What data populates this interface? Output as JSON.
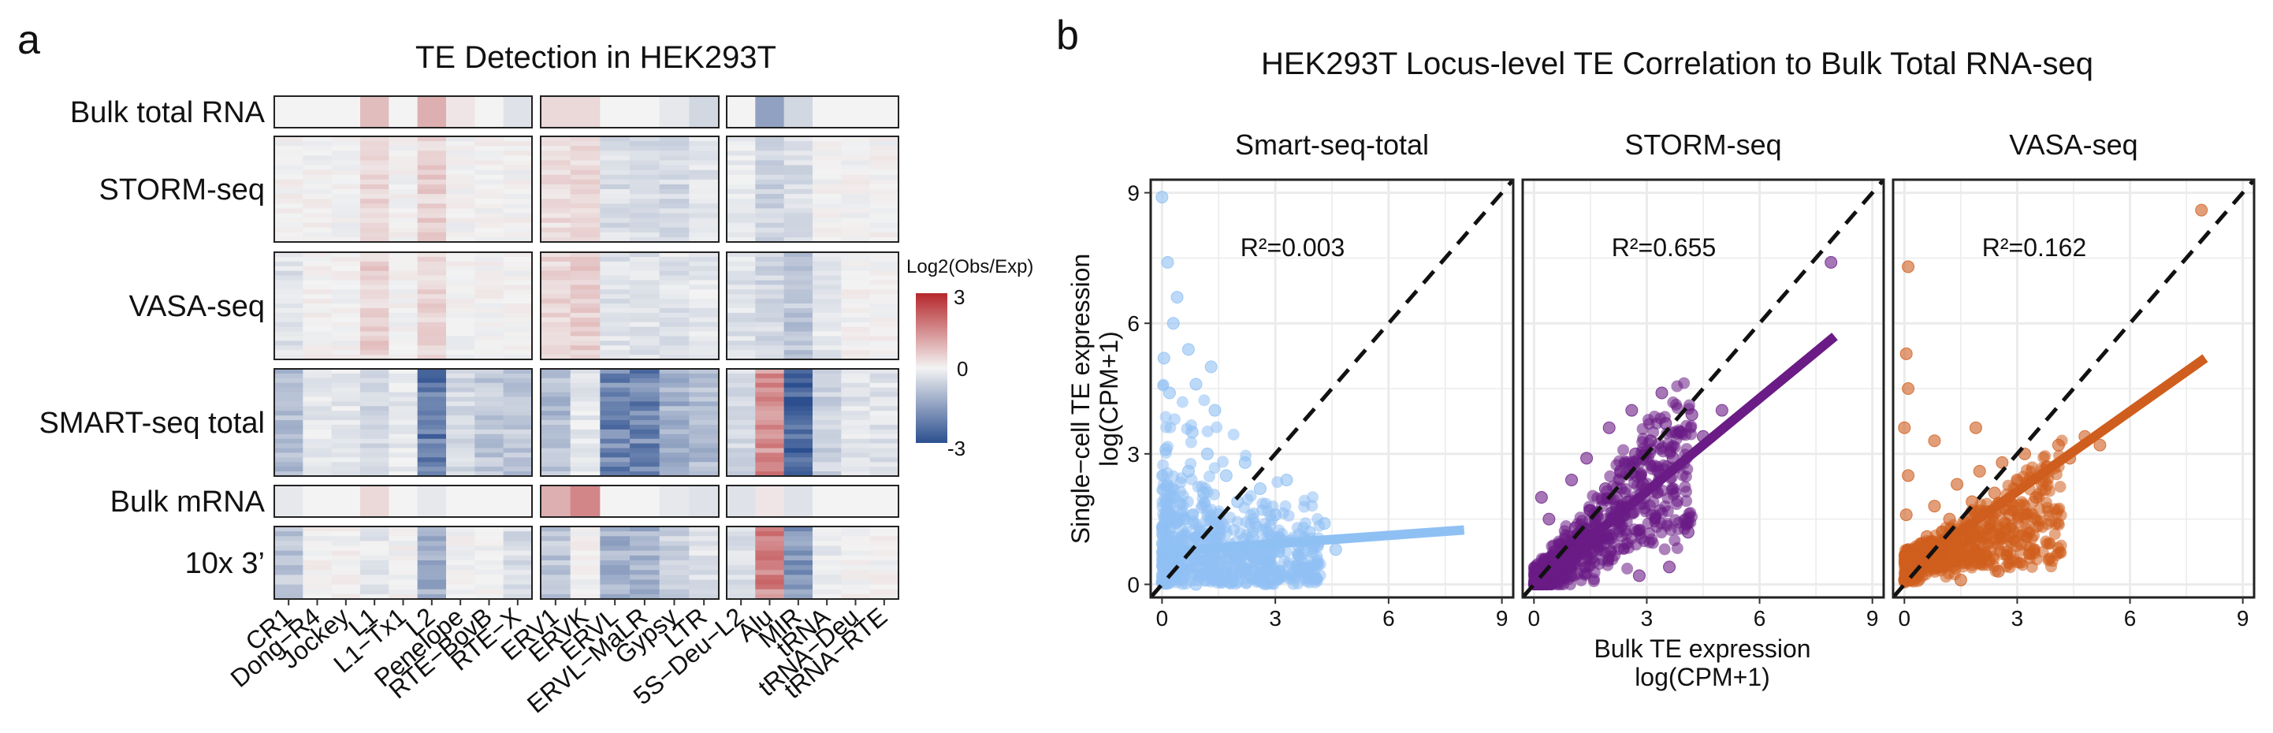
{
  "panel_a": {
    "letter": "a",
    "title": "TE Detection in HEK293T",
    "legend": {
      "title": "Log2(Obs/Exp)",
      "max": "3",
      "mid": "0",
      "min": "-3",
      "colors": {
        "low": "#2c4f8f",
        "mid": "#f3f3f3",
        "high": "#b5272b"
      }
    }
  },
  "panel_b": {
    "letter": "b",
    "title": "HEK293T Locus-level TE Correlation to Bulk Total RNA-seq",
    "y_title_line1": "Single−cell TE expression",
    "y_title_line2": "log(CPM+1)",
    "x_title_line1": "Bulk TE expression",
    "x_title_line2": "log(CPM+1)"
  },
  "chart_data": [
    {
      "type": "heatmap",
      "title": "TE Detection in HEK293T",
      "rows": [
        "Bulk total RNA",
        "STORM-seq",
        "VASA-seq",
        "SMART-seq total",
        "Bulk mRNA",
        "10x 3’"
      ],
      "column_groups": [
        [
          "CR1",
          "Dong−R4",
          "Jockey",
          "L1",
          "L1−Tx1",
          "L2",
          "Penelope",
          "RTE−BovB",
          "RTE−X"
        ],
        [
          "ERV1",
          "ERVK",
          "ERVL",
          "ERVL−MaLR",
          "Gypsy",
          "LTR"
        ],
        [
          "5S−Deu−L2",
          "Alu",
          "MIR",
          "tRNA",
          "tRNA−Deu",
          "tRNA−RTE"
        ]
      ],
      "values": {
        "Bulk total RNA": [
          [
            0,
            0,
            0,
            0.8,
            0,
            1.0,
            0.2,
            0,
            -0.3
          ],
          [
            0.4,
            0.4,
            0,
            0,
            -0.2,
            -0.5
          ],
          [
            0,
            -1.5,
            -0.5,
            0,
            0,
            0
          ]
        ],
        "STORM-seq": [
          [
            0,
            0,
            0,
            0.5,
            0,
            0.5,
            0,
            0,
            0
          ],
          [
            0.3,
            0.4,
            -0.4,
            -0.4,
            -0.5,
            -0.3
          ],
          [
            -0.2,
            -0.6,
            -0.4,
            0,
            0,
            0
          ]
        ],
        "VASA-seq": [
          [
            -0.3,
            0,
            0,
            0.5,
            0,
            0.4,
            0,
            0,
            0
          ],
          [
            0.4,
            0.5,
            -0.3,
            -0.3,
            -0.3,
            -0.2
          ],
          [
            -0.3,
            -0.5,
            -0.8,
            -0.2,
            0,
            0
          ]
        ],
        "SMART-seq total": [
          [
            -1.0,
            -0.2,
            -0.2,
            -0.5,
            -0.2,
            -2.2,
            -0.5,
            -0.8,
            -0.8
          ],
          [
            -1.0,
            -0.2,
            -2.0,
            -2.0,
            -1.2,
            -1.0
          ],
          [
            -0.5,
            1.5,
            -2.6,
            -0.6,
            -0.3,
            -0.3
          ]
        ],
        "Bulk mRNA": [
          [
            -0.2,
            0,
            0,
            0.4,
            0,
            -0.2,
            0,
            0,
            0
          ],
          [
            1.0,
            1.6,
            0,
            0,
            -0.2,
            -0.3
          ],
          [
            -0.3,
            0.2,
            -0.3,
            0,
            0,
            0
          ]
        ],
        "10x 3’": [
          [
            -0.8,
            0,
            0,
            -0.2,
            0,
            -1.2,
            0,
            0,
            -0.4
          ],
          [
            -0.8,
            0,
            -1.2,
            -1.2,
            -0.6,
            -0.3
          ],
          [
            -0.3,
            1.6,
            -1.6,
            -0.2,
            0,
            0
          ]
        ]
      },
      "color_scale": {
        "label": "Log2(Obs/Exp)",
        "min": -3,
        "mid": 0,
        "max": 3
      }
    },
    {
      "type": "scatter",
      "title": "Smart-seq-total",
      "annotation": "R²=0.003",
      "color": "#8fc0f4",
      "xlim": [
        -0.3,
        9.3
      ],
      "ylim": [
        -0.3,
        9.3
      ],
      "x_ticks": [
        "0",
        "3",
        "6",
        "9"
      ],
      "y_ticks": [
        "0",
        "3",
        "6",
        "9"
      ],
      "identity_line": true,
      "fit": {
        "x": [
          0,
          8
        ],
        "y": [
          0.75,
          1.25
        ]
      },
      "points": [
        {
          "x": 0.0,
          "y": 0.05
        },
        {
          "x": 0.1,
          "y": 0.6
        },
        {
          "x": 0.2,
          "y": 1.3
        },
        {
          "x": 0.3,
          "y": 2.0
        },
        {
          "x": 0.1,
          "y": 3.1
        },
        {
          "x": 0.2,
          "y": 4.4
        },
        {
          "x": 0.05,
          "y": 5.2
        },
        {
          "x": 0.3,
          "y": 6.0
        },
        {
          "x": 0.15,
          "y": 7.4
        },
        {
          "x": 0.0,
          "y": 8.9
        },
        {
          "x": 0.5,
          "y": 0.4
        },
        {
          "x": 0.6,
          "y": 1.5
        },
        {
          "x": 0.7,
          "y": 2.6
        },
        {
          "x": 0.8,
          "y": 3.5
        },
        {
          "x": 0.9,
          "y": 4.6
        },
        {
          "x": 0.7,
          "y": 5.4
        },
        {
          "x": 1.0,
          "y": 0.9
        },
        {
          "x": 1.1,
          "y": 2.1
        },
        {
          "x": 1.2,
          "y": 3.0
        },
        {
          "x": 1.4,
          "y": 4.0
        },
        {
          "x": 1.5,
          "y": 1.6
        },
        {
          "x": 1.7,
          "y": 2.5
        },
        {
          "x": 1.9,
          "y": 0.7
        },
        {
          "x": 2.0,
          "y": 1.9
        },
        {
          "x": 2.2,
          "y": 2.8
        },
        {
          "x": 2.4,
          "y": 1.1
        },
        {
          "x": 2.6,
          "y": 2.2
        },
        {
          "x": 2.8,
          "y": 0.5
        },
        {
          "x": 3.0,
          "y": 1.6
        },
        {
          "x": 3.3,
          "y": 2.4
        },
        {
          "x": 3.6,
          "y": 0.9
        },
        {
          "x": 3.9,
          "y": 1.2
        },
        {
          "x": 4.3,
          "y": 1.4
        },
        {
          "x": 4.6,
          "y": 0.8
        },
        {
          "x": 3.2,
          "y": 0.2
        },
        {
          "x": 1.6,
          "y": 0.1
        },
        {
          "x": 2.4,
          "y": 0.3
        },
        {
          "x": 0.9,
          "y": 0.0
        },
        {
          "x": 1.3,
          "y": 5.0
        },
        {
          "x": 0.4,
          "y": 6.6
        }
      ]
    },
    {
      "type": "scatter",
      "title": "STORM-seq",
      "annotation": "R²=0.655",
      "color": "#6a1b85",
      "xlim": [
        -0.3,
        9.3
      ],
      "ylim": [
        -0.3,
        9.3
      ],
      "x_ticks": [
        "0",
        "3",
        "6",
        "9"
      ],
      "y_ticks": [],
      "identity_line": true,
      "fit": {
        "x": [
          0,
          8
        ],
        "y": [
          0.0,
          5.7
        ]
      },
      "points": [
        {
          "x": 0.1,
          "y": 0.1
        },
        {
          "x": 0.3,
          "y": 0.4
        },
        {
          "x": 0.5,
          "y": 0.2
        },
        {
          "x": 0.7,
          "y": 0.9
        },
        {
          "x": 0.9,
          "y": 0.6
        },
        {
          "x": 1.1,
          "y": 1.3
        },
        {
          "x": 1.3,
          "y": 0.8
        },
        {
          "x": 1.5,
          "y": 1.7
        },
        {
          "x": 1.7,
          "y": 1.1
        },
        {
          "x": 1.9,
          "y": 2.2
        },
        {
          "x": 2.1,
          "y": 1.5
        },
        {
          "x": 2.3,
          "y": 2.6
        },
        {
          "x": 2.5,
          "y": 1.9
        },
        {
          "x": 2.7,
          "y": 3.0
        },
        {
          "x": 2.9,
          "y": 2.3
        },
        {
          "x": 3.1,
          "y": 3.3
        },
        {
          "x": 3.3,
          "y": 2.6
        },
        {
          "x": 3.5,
          "y": 3.7
        },
        {
          "x": 3.7,
          "y": 2.9
        },
        {
          "x": 3.9,
          "y": 3.5
        },
        {
          "x": 4.2,
          "y": 3.9
        },
        {
          "x": 4.5,
          "y": 3.4
        },
        {
          "x": 2.0,
          "y": 3.6
        },
        {
          "x": 1.4,
          "y": 2.9
        },
        {
          "x": 2.6,
          "y": 4.0
        },
        {
          "x": 3.4,
          "y": 4.4
        },
        {
          "x": 0.4,
          "y": 1.5
        },
        {
          "x": 1.0,
          "y": 2.4
        },
        {
          "x": 4.1,
          "y": 1.2
        },
        {
          "x": 3.6,
          "y": 0.4
        },
        {
          "x": 2.8,
          "y": 0.2
        },
        {
          "x": 5.0,
          "y": 4.0
        },
        {
          "x": 7.9,
          "y": 7.4
        },
        {
          "x": 0.2,
          "y": 2.0
        }
      ]
    },
    {
      "type": "scatter",
      "title": "VASA-seq",
      "annotation": "R²=0.162",
      "color": "#cf5e1e",
      "xlim": [
        -0.3,
        9.3
      ],
      "ylim": [
        -0.3,
        9.3
      ],
      "x_ticks": [
        "0",
        "3",
        "6",
        "9"
      ],
      "y_ticks": [],
      "identity_line": true,
      "fit": {
        "x": [
          0,
          8
        ],
        "y": [
          0.3,
          5.2
        ]
      },
      "points": [
        {
          "x": 0.0,
          "y": 0.1
        },
        {
          "x": 0.1,
          "y": 0.8
        },
        {
          "x": 0.05,
          "y": 1.6
        },
        {
          "x": 0.1,
          "y": 2.5
        },
        {
          "x": 0.0,
          "y": 3.6
        },
        {
          "x": 0.1,
          "y": 4.5
        },
        {
          "x": 0.05,
          "y": 5.3
        },
        {
          "x": 0.1,
          "y": 7.3
        },
        {
          "x": 0.4,
          "y": 0.4
        },
        {
          "x": 0.6,
          "y": 1.1
        },
        {
          "x": 0.8,
          "y": 1.8
        },
        {
          "x": 1.0,
          "y": 0.7
        },
        {
          "x": 1.2,
          "y": 1.5
        },
        {
          "x": 1.4,
          "y": 2.3
        },
        {
          "x": 1.6,
          "y": 1.0
        },
        {
          "x": 1.8,
          "y": 1.9
        },
        {
          "x": 2.0,
          "y": 2.6
        },
        {
          "x": 2.2,
          "y": 1.3
        },
        {
          "x": 2.4,
          "y": 2.1
        },
        {
          "x": 2.6,
          "y": 2.8
        },
        {
          "x": 2.8,
          "y": 1.6
        },
        {
          "x": 3.0,
          "y": 2.4
        },
        {
          "x": 3.2,
          "y": 3.0
        },
        {
          "x": 3.5,
          "y": 2.0
        },
        {
          "x": 3.8,
          "y": 2.7
        },
        {
          "x": 4.1,
          "y": 3.2
        },
        {
          "x": 4.4,
          "y": 2.9
        },
        {
          "x": 4.8,
          "y": 3.4
        },
        {
          "x": 5.2,
          "y": 3.2
        },
        {
          "x": 2.5,
          "y": 0.3
        },
        {
          "x": 1.5,
          "y": 0.1
        },
        {
          "x": 0.8,
          "y": 3.3
        },
        {
          "x": 1.9,
          "y": 3.6
        },
        {
          "x": 7.9,
          "y": 8.6
        }
      ]
    }
  ]
}
